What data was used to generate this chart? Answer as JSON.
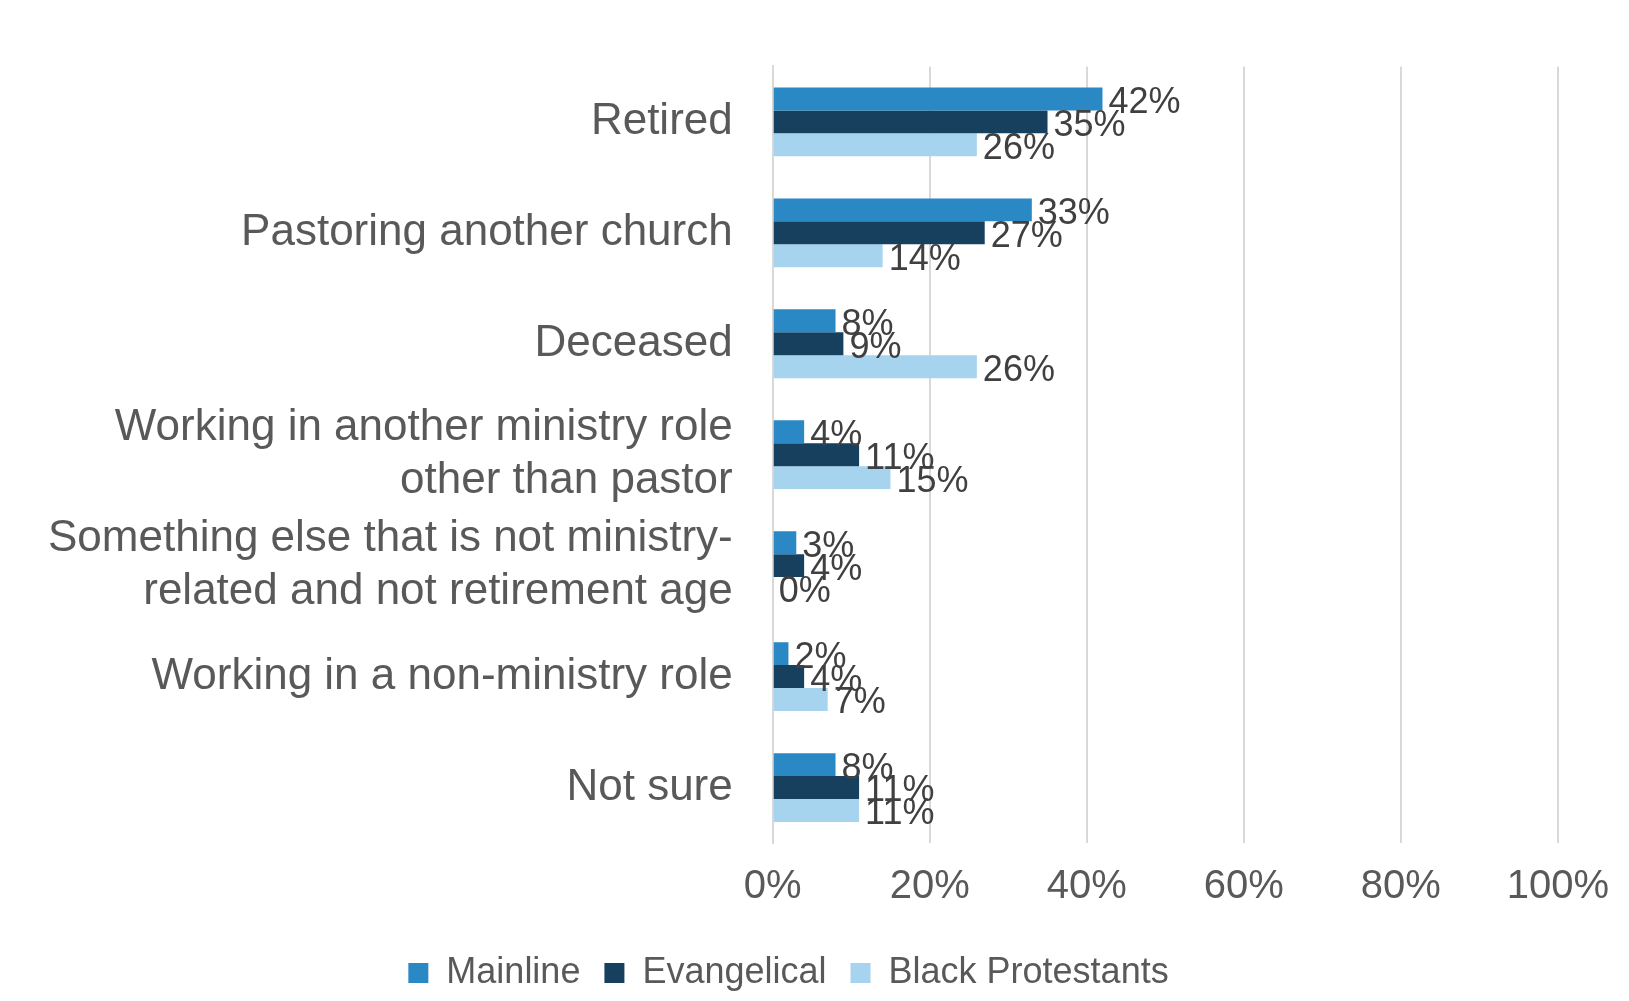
{
  "chart_data": {
    "type": "bar",
    "orientation": "horizontal",
    "categories": [
      "Retired",
      "Pastoring another church",
      "Deceased",
      "Working in another ministry role other than pastor",
      "Something else that is not ministry-related and not retirement age",
      "Working in a non-ministry role",
      "Not sure"
    ],
    "series": [
      {
        "name": "Mainline",
        "color": "#2a88c4",
        "values": [
          42,
          33,
          8,
          4,
          3,
          2,
          8
        ],
        "value_labels": [
          "42%",
          "33%",
          "8%",
          "4%",
          "3%",
          "2%",
          "8%"
        ]
      },
      {
        "name": "Evangelical",
        "color": "#17405f",
        "values": [
          35,
          27,
          9,
          11,
          4,
          4,
          11
        ],
        "value_labels": [
          "35%",
          "27%",
          "9%",
          "11%",
          "4%",
          "4%",
          "11%"
        ]
      },
      {
        "name": "Black Protestants",
        "color": "#a6d3ee",
        "values": [
          26,
          14,
          26,
          15,
          0,
          7,
          11
        ],
        "value_labels": [
          "26%",
          "14%",
          "26%",
          "15%",
          "0%",
          "7%",
          "11%"
        ]
      }
    ],
    "xlim": [
      0,
      100
    ],
    "xticks": [
      {
        "value": 0,
        "label": "0%"
      },
      {
        "value": 20,
        "label": "20%"
      },
      {
        "value": 40,
        "label": "40%"
      },
      {
        "value": 60,
        "label": "60%"
      },
      {
        "value": 80,
        "label": "80%"
      },
      {
        "value": 100,
        "label": "100%"
      }
    ],
    "grid": "x",
    "legend": "bottom"
  }
}
